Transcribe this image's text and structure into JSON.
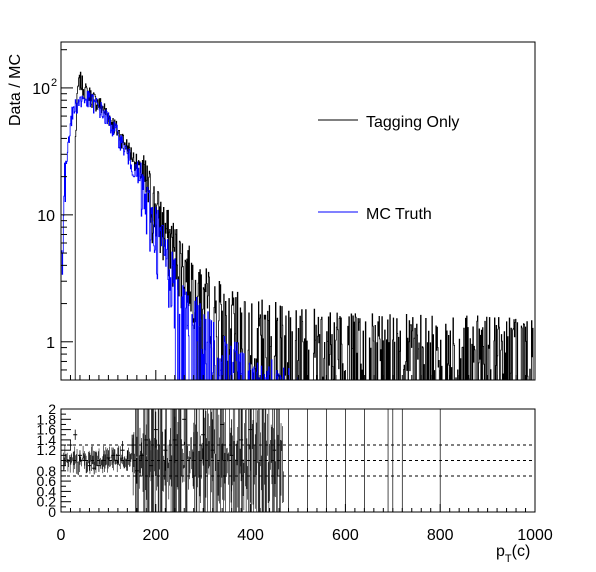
{
  "chart_data": [
    {
      "type": "line",
      "panel": "main",
      "ylabel": "Data / MC",
      "yscale": "log",
      "xlim": [
        0,
        1000
      ],
      "ylim": [
        0.5,
        230
      ],
      "y_major_ticks": [
        {
          "value": 1,
          "label": "1"
        },
        {
          "value": 10,
          "label": "10"
        },
        {
          "value": 100,
          "label": "10",
          "sup": "2"
        }
      ],
      "legend": {
        "placement": "right",
        "entries": [
          "Tagging Only",
          "MC Truth"
        ]
      },
      "series": [
        {
          "name": "Tagging Only",
          "color": "#000000",
          "x": [
            30,
            35,
            40,
            45,
            50,
            60,
            70,
            80,
            90,
            100,
            120,
            140,
            160,
            180,
            200,
            220,
            240,
            260,
            280,
            300,
            320,
            340,
            360,
            380,
            400,
            450,
            500,
            600,
            700,
            800,
            900,
            1000
          ],
          "y": [
            40,
            100,
            115,
            105,
            95,
            88,
            80,
            75,
            68,
            60,
            45,
            34,
            25,
            17,
            11,
            7.5,
            5.5,
            4,
            3.2,
            2.5,
            2.1,
            1.8,
            1.6,
            1.5,
            1.4,
            1.3,
            1.2,
            1.1,
            1.05,
            1,
            1,
            1
          ]
        },
        {
          "name": "MC Truth",
          "color": "#0000ff",
          "x": [
            0,
            5,
            10,
            15,
            20,
            25,
            30,
            40,
            50,
            60,
            70,
            80,
            90,
            100,
            120,
            140,
            160,
            180,
            200,
            220,
            240,
            260,
            280,
            300,
            320,
            340,
            360,
            380,
            400,
            500
          ],
          "y": [
            4,
            12,
            24,
            40,
            55,
            65,
            72,
            80,
            82,
            80,
            75,
            70,
            62,
            55,
            42,
            30,
            20,
            12,
            8,
            5,
            3,
            2,
            1.5,
            1.2,
            1,
            0.8,
            0.7,
            0.6,
            0.5,
            0.4
          ]
        }
      ]
    },
    {
      "type": "line",
      "panel": "ratio",
      "xlabel": "p",
      "xlabel_sub": "T",
      "xlabel_suffix": "(c)",
      "xlim": [
        0,
        1000
      ],
      "ylim": [
        0,
        2
      ],
      "x_major_ticks": [
        0,
        200,
        400,
        600,
        800,
        1000
      ],
      "y_tick_labels": [
        "0",
        "0.2",
        "0.4",
        "0.6",
        "0.8",
        "1.2",
        "1.4",
        "1.6",
        "1.8",
        "2"
      ],
      "reference_lines": [
        0.7,
        1.0,
        1.3
      ],
      "series": [
        {
          "name": "",
          "color": "#000000",
          "x": [
            20,
            30,
            40,
            50,
            60,
            70,
            80,
            90,
            100,
            110,
            120,
            130,
            140,
            150,
            160,
            170,
            180,
            190,
            200,
            220,
            240,
            260,
            280,
            300,
            320,
            340,
            360,
            380,
            400,
            450
          ],
          "y": [
            1.3,
            1.5,
            1.1,
            1.0,
            0.9,
            0.85,
            0.9,
            1.0,
            1.05,
            1.1,
            1.1,
            1.2,
            1.0,
            1.3,
            0.8,
            1.1,
            1.4,
            0.9,
            1.6,
            1.2,
            1.4,
            1.8,
            1.0,
            1.5,
            1.2,
            1.7,
            1.1,
            1.4,
            1.6,
            1.2
          ],
          "err": [
            0.1,
            0.1,
            0.1,
            0.1,
            0.1,
            0.12,
            0.12,
            0.12,
            0.15,
            0.15,
            0.15,
            0.18,
            0.2,
            0.2,
            0.25,
            0.25,
            0.3,
            0.3,
            0.35,
            0.4,
            0.45,
            0.5,
            0.55,
            0.6,
            0.6,
            0.7,
            0.7,
            0.8,
            0.8,
            0.9
          ]
        }
      ]
    }
  ]
}
